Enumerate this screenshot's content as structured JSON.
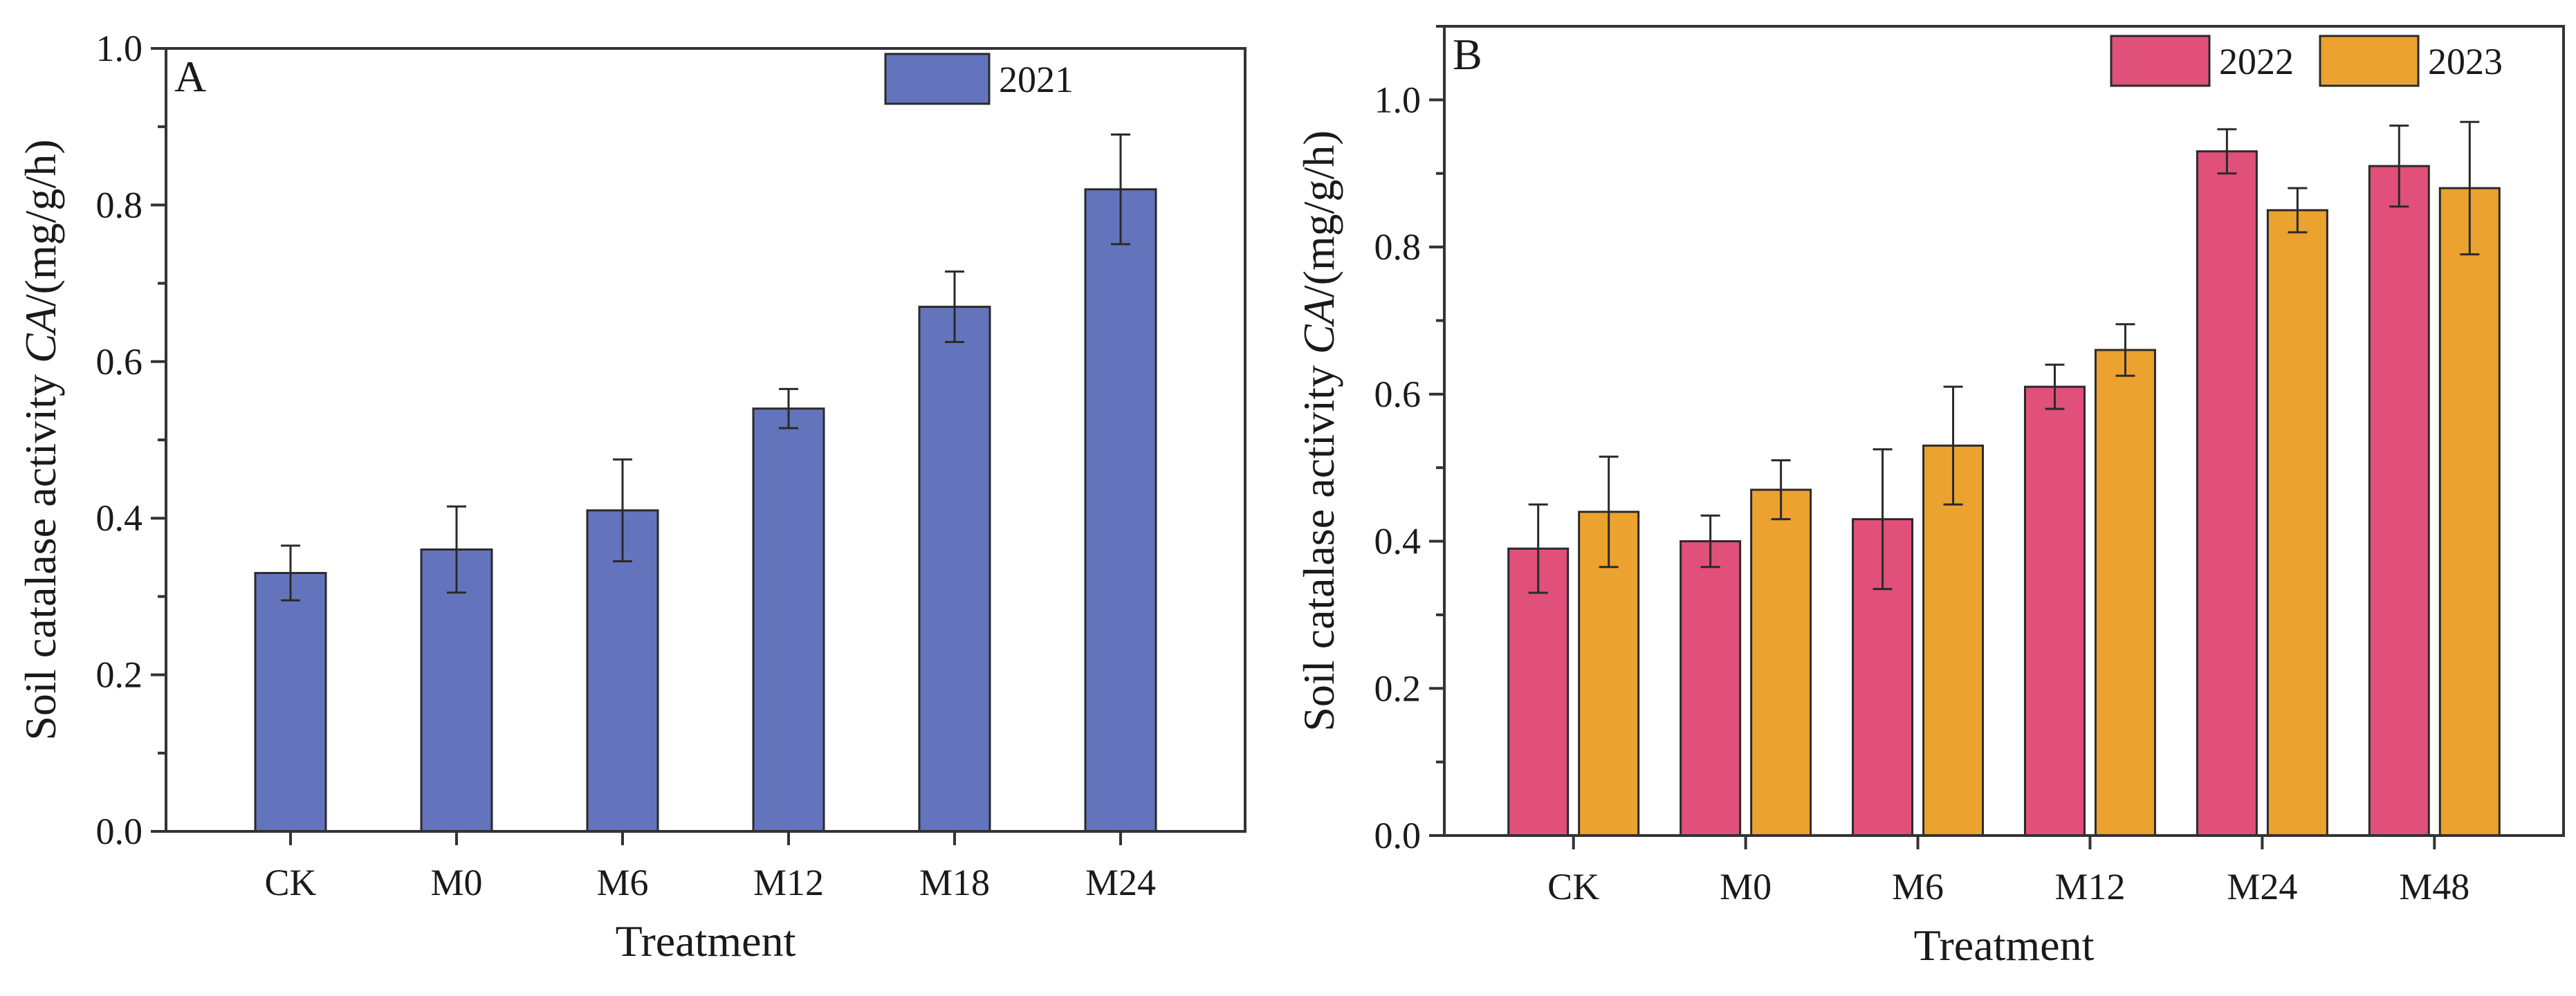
{
  "chart_data": [
    {
      "type": "bar",
      "panel_label": "A",
      "categories": [
        "CK",
        "M0",
        "M6",
        "M12",
        "M18",
        "M24"
      ],
      "series": [
        {
          "name": "2021",
          "color": "#6474bc",
          "values": [
            0.33,
            0.36,
            0.41,
            0.54,
            0.67,
            0.82
          ],
          "errors": [
            0.035,
            0.055,
            0.065,
            0.025,
            0.045,
            0.07
          ]
        }
      ],
      "xlabel": "Treatment",
      "ylabel_prefix": "Soil catalase activity ",
      "ylabel_italic": "CA",
      "ylabel_suffix": "/(mg/g/h)",
      "ylim": [
        0,
        1.0
      ],
      "yticks": [
        "0.0",
        "0.2",
        "0.4",
        "0.6",
        "0.8",
        "1.0"
      ],
      "legend": "top-right",
      "grid": false
    },
    {
      "type": "bar",
      "panel_label": "B",
      "categories": [
        "CK",
        "M0",
        "M6",
        "M12",
        "M24",
        "M48"
      ],
      "series": [
        {
          "name": "2022",
          "color": "#e0507a",
          "values": [
            0.39,
            0.4,
            0.43,
            0.61,
            0.93,
            0.91
          ],
          "errors": [
            0.06,
            0.035,
            0.095,
            0.03,
            0.03,
            0.055
          ]
        },
        {
          "name": "2023",
          "color": "#eba22e",
          "values": [
            0.44,
            0.47,
            0.53,
            0.66,
            0.85,
            0.88
          ],
          "errors": [
            0.075,
            0.04,
            0.08,
            0.035,
            0.03,
            0.09
          ]
        }
      ],
      "xlabel": "Treatment",
      "ylabel_prefix": "Soil catalase activity ",
      "ylabel_italic": "CA",
      "ylabel_suffix": "/(mg/g/h)",
      "ylim": [
        0,
        1.1
      ],
      "yticks": [
        "0.0",
        "0.2",
        "0.4",
        "0.6",
        "0.8",
        "1.0"
      ],
      "legend": "top-right",
      "grid": false
    }
  ]
}
